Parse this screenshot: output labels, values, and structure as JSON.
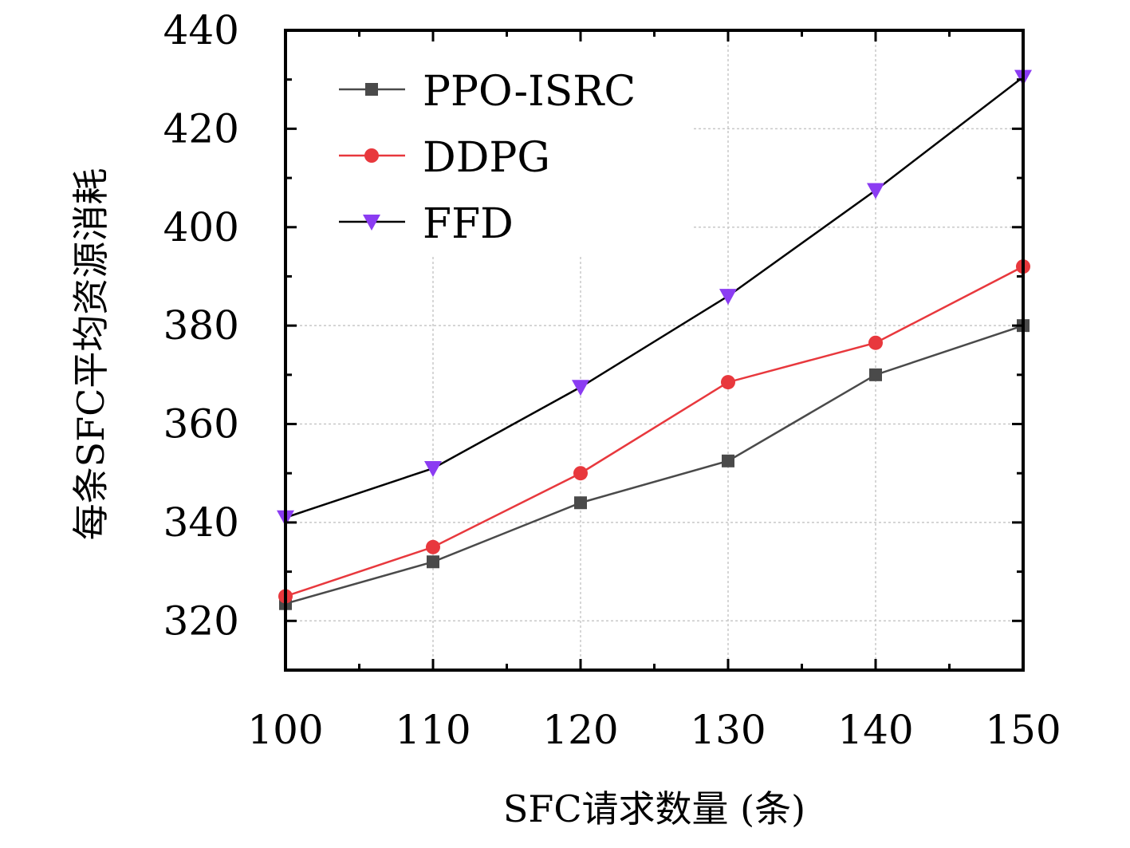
{
  "chart_data": {
    "type": "line",
    "xlabel": "SFC请求数量 (条)",
    "ylabel": "每条SFC平均资源消耗",
    "x": [
      100,
      110,
      120,
      130,
      140,
      150
    ],
    "xlim": [
      100,
      150
    ],
    "ylim": [
      310,
      440
    ],
    "xticks": [
      100,
      110,
      120,
      130,
      140,
      150
    ],
    "yticks": [
      320,
      340,
      360,
      380,
      400,
      420,
      440
    ],
    "grid": true,
    "legend_position": "top-left",
    "series": [
      {
        "name": "PPO-ISRC",
        "marker": "square",
        "color": "#4a4a4a",
        "values": [
          323.5,
          332,
          344,
          352.5,
          370,
          380
        ]
      },
      {
        "name": "DDPG",
        "marker": "circle",
        "color": "#e8383d",
        "values": [
          325,
          335,
          350,
          368.5,
          376.5,
          392
        ]
      },
      {
        "name": "FFD",
        "marker": "triangle-down",
        "color": "#8b3cf2",
        "line_color": "#000000",
        "values": [
          341,
          351,
          367.5,
          386,
          407.5,
          430.5
        ]
      }
    ]
  }
}
